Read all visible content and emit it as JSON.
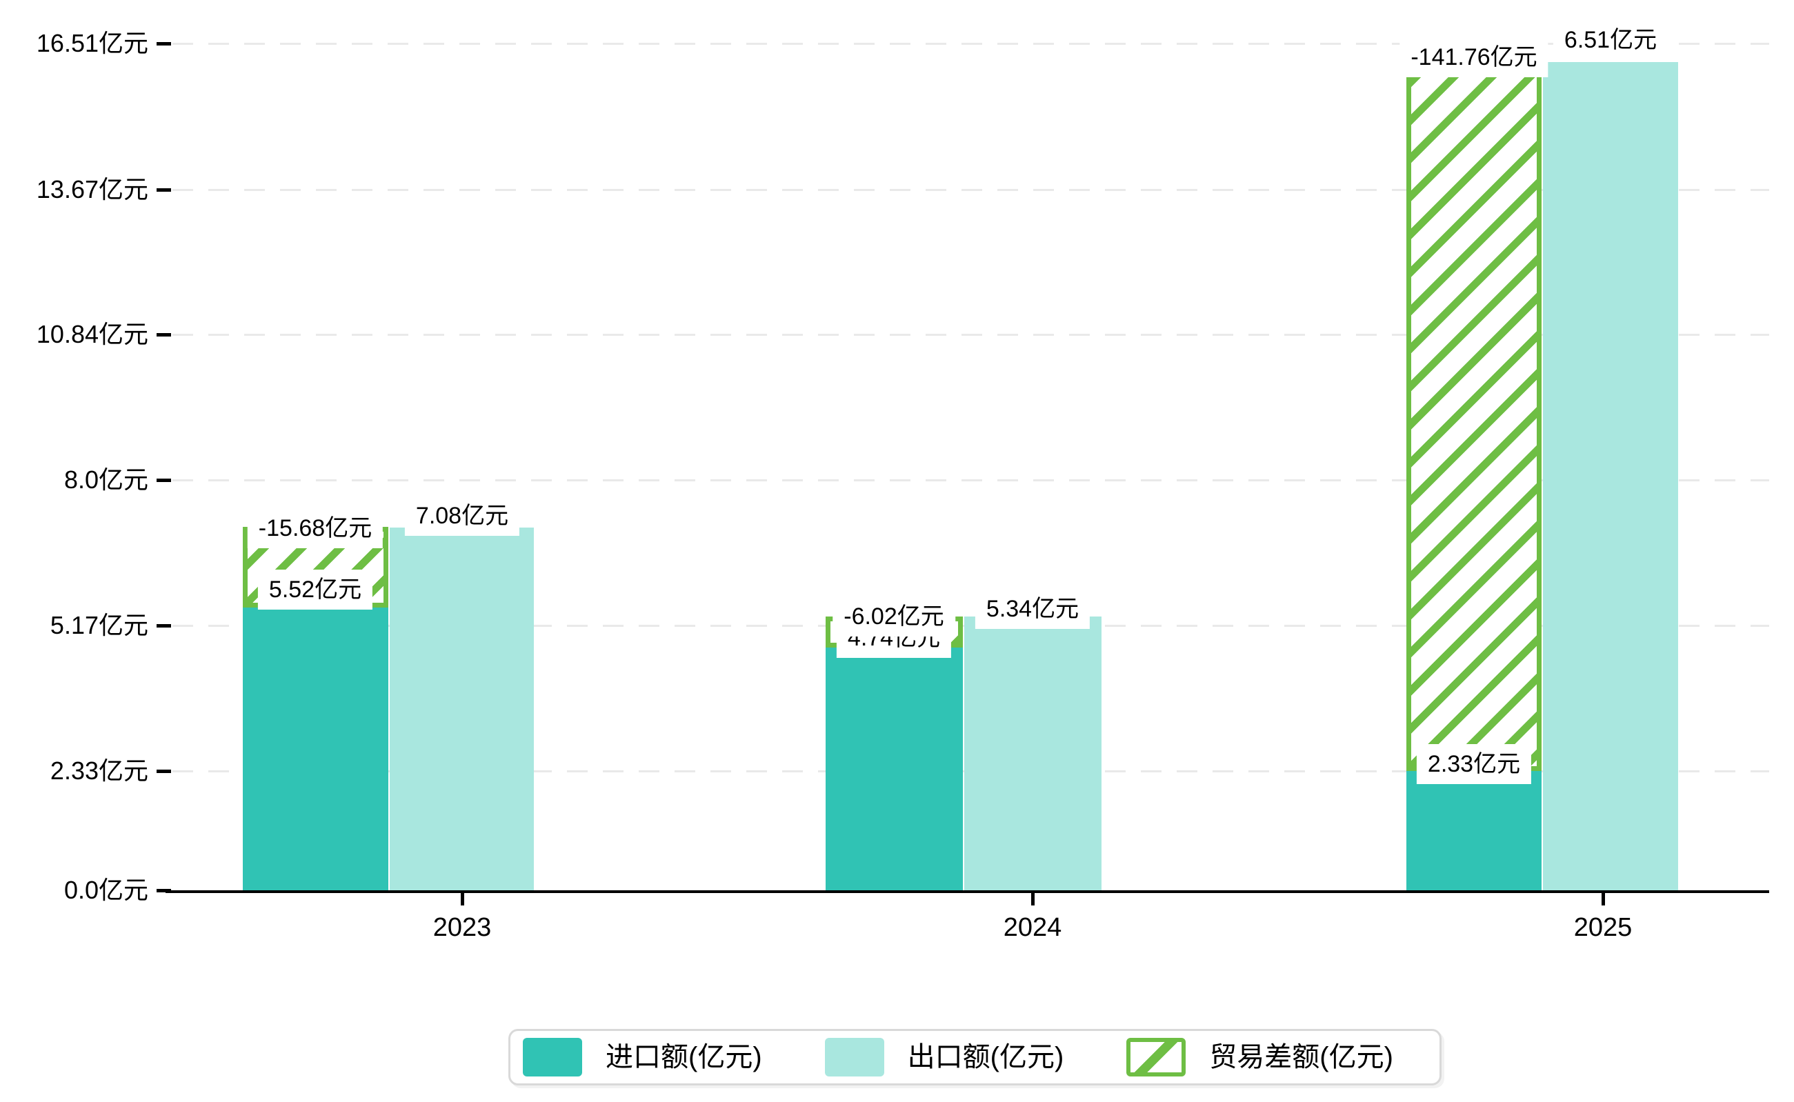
{
  "chart_data": {
    "type": "bar",
    "title": "",
    "categories": [
      "2023",
      "2024",
      "2025"
    ],
    "series": [
      {
        "name": "进口额(亿元)",
        "values": [
          5.52,
          4.74,
          2.33
        ],
        "labels": [
          "5.52亿元",
          "4.74亿元",
          "2.33亿元"
        ],
        "color": "#30c3b4",
        "style": "solid"
      },
      {
        "name": "出口额(亿元)",
        "values": [
          7.08,
          5.34,
          6.51
        ],
        "labels": [
          "7.08亿元",
          "5.34亿元",
          "6.51亿元"
        ],
        "color": "#a9e7df",
        "style": "solid"
      },
      {
        "name": "贸易差额(亿元)",
        "values": [
          -15.68,
          -6.02,
          -141.76
        ],
        "labels": [
          "-15.68亿元",
          "-6.02亿元",
          "-141.76亿元"
        ],
        "color": "#6ebe44",
        "style": "hatched"
      }
    ],
    "xlabel": "",
    "ylabel": "",
    "y_ticks": [
      "0.0亿元",
      "2.33亿元",
      "5.17亿元",
      "8.0亿元",
      "10.84亿元",
      "13.67亿元",
      "16.51亿元"
    ],
    "y_tick_values": [
      0,
      2.33,
      5.17,
      8.0,
      10.84,
      13.67,
      16.51
    ],
    "ylim": [
      0,
      16.51
    ],
    "grid": true,
    "legend_position": "bottom"
  },
  "legend": {
    "items": [
      {
        "label": "进口额(亿元)",
        "swatch": "import-solid-swatch"
      },
      {
        "label": "出口额(亿元)",
        "swatch": "export-solid-swatch"
      },
      {
        "label": "贸易差额(亿元)",
        "swatch": "balance-hatched-swatch"
      }
    ]
  },
  "colors": {
    "import_bar": "#30c3b4",
    "export_bar": "#a9e7df",
    "balance_green": "#6ebe44",
    "gridline": "#e9e9e9",
    "axis": "#000000",
    "label_bg": "#ffffff",
    "legend_border": "#d9d9d9"
  }
}
